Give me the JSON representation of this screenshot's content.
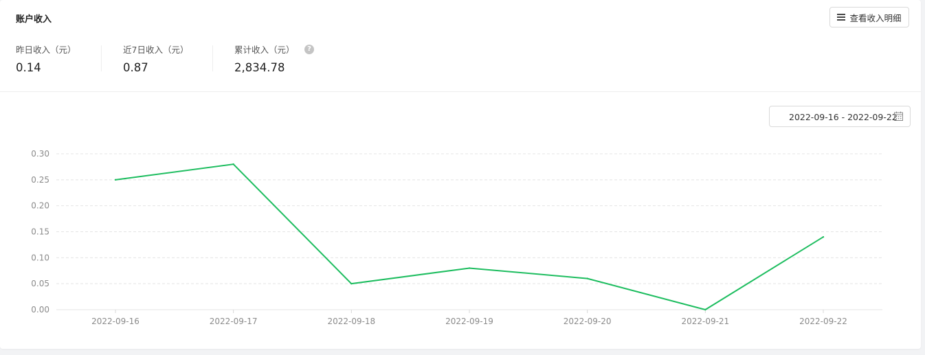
{
  "header": {
    "title": "账户收入",
    "detail_button_label": "查看收入明细"
  },
  "stats": [
    {
      "label": "昨日收入（元）",
      "value": "0.14"
    },
    {
      "label": "近7日收入（元）",
      "value": "0.87"
    },
    {
      "label": "累计收入（元）",
      "value": "2,834.78"
    }
  ],
  "help_icon": "question-circle-icon",
  "date_range": {
    "value": "2022-09-16 - 2022-09-22",
    "icon": "calendar-icon"
  },
  "colors": {
    "line": "#1dbd5f",
    "grid": "#e4e4e4",
    "axis_text": "#8a8a8a"
  },
  "chart_data": {
    "type": "line",
    "categories": [
      "2022-09-16",
      "2022-09-17",
      "2022-09-18",
      "2022-09-19",
      "2022-09-20",
      "2022-09-21",
      "2022-09-22"
    ],
    "values": [
      0.25,
      0.28,
      0.05,
      0.08,
      0.06,
      0.0,
      0.14
    ],
    "y_ticks": [
      "0.00",
      "0.05",
      "0.10",
      "0.15",
      "0.20",
      "0.25",
      "0.30"
    ],
    "ylim": [
      0,
      0.3
    ],
    "grid": true,
    "grid_style": "dashed",
    "title": "",
    "xlabel": "",
    "ylabel": ""
  }
}
